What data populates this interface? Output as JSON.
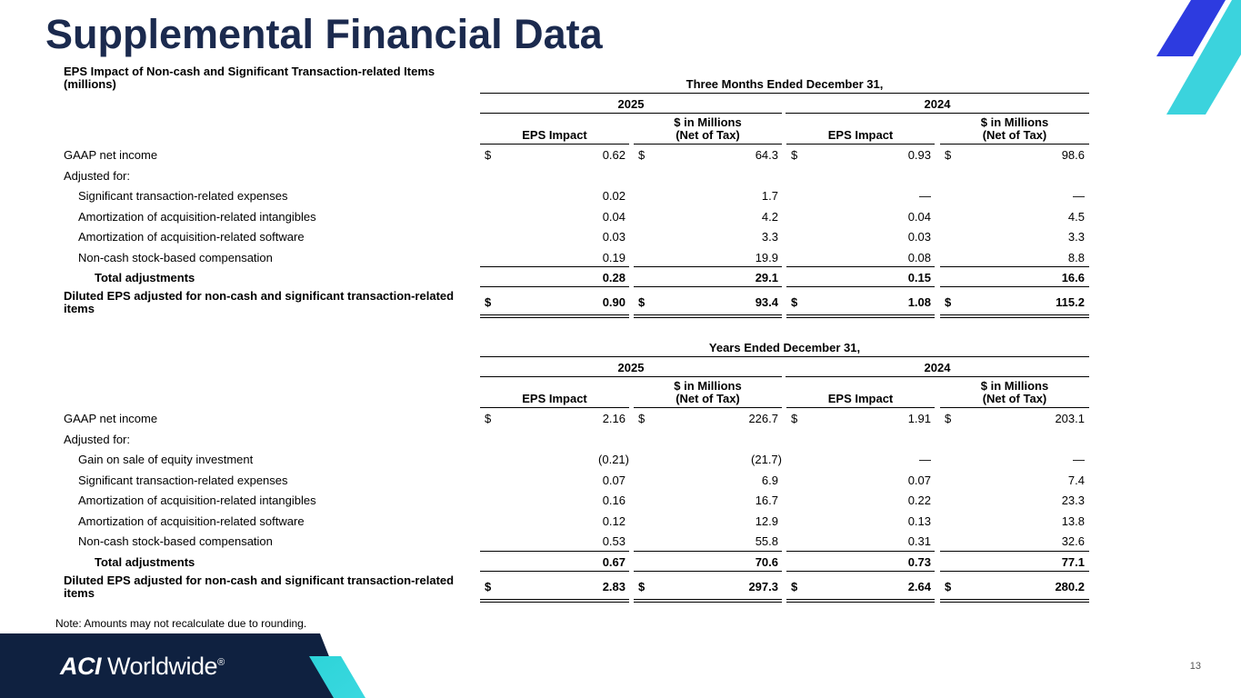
{
  "title": "Supplemental Financial Data",
  "table_title": "EPS Impact of Non-cash and Significant Transaction-related Items",
  "units": "(millions)",
  "sections": [
    {
      "period": "Three Months Ended December 31,",
      "years": [
        "2025",
        "2024"
      ],
      "headers": [
        [
          "EPS Impact"
        ],
        [
          "$ in Millions",
          "(Net of Tax)"
        ],
        [
          "EPS Impact"
        ],
        [
          "$ in Millions",
          "(Net of Tax)"
        ]
      ],
      "gaap": {
        "label": "GAAP net income",
        "currency": "$",
        "values": [
          "0.62",
          "64.3",
          "0.93",
          "98.6"
        ]
      },
      "adjusted_for": "Adjusted for:",
      "adjustments": [
        {
          "label": "Significant transaction-related expenses",
          "values": [
            "0.02",
            "1.7",
            "—",
            "—"
          ]
        },
        {
          "label": "Amortization of acquisition-related intangibles",
          "values": [
            "0.04",
            "4.2",
            "0.04",
            "4.5"
          ]
        },
        {
          "label": "Amortization of acquisition-related software",
          "values": [
            "0.03",
            "3.3",
            "0.03",
            "3.3"
          ]
        },
        {
          "label": "Non-cash stock-based compensation",
          "values": [
            "0.19",
            "19.9",
            "0.08",
            "8.8"
          ]
        }
      ],
      "total": {
        "label": "Total adjustments",
        "values": [
          "0.28",
          "29.1",
          "0.15",
          "16.6"
        ]
      },
      "diluted": {
        "label": "Diluted EPS adjusted for non-cash and significant transaction-related items",
        "currency": "$",
        "values": [
          "0.90",
          "93.4",
          "1.08",
          "115.2"
        ]
      }
    },
    {
      "period": "Years Ended December 31,",
      "years": [
        "2025",
        "2024"
      ],
      "headers": [
        [
          "EPS Impact"
        ],
        [
          "$ in Millions",
          "(Net of Tax)"
        ],
        [
          "EPS Impact"
        ],
        [
          "$ in Millions",
          "(Net of Tax)"
        ]
      ],
      "gaap": {
        "label": "GAAP net income",
        "currency": "$",
        "values": [
          "2.16",
          "226.7",
          "1.91",
          "203.1"
        ]
      },
      "adjusted_for": "Adjusted for:",
      "adjustments": [
        {
          "label": "Gain on sale of equity investment",
          "values": [
            "(0.21)",
            "(21.7)",
            "—",
            "—"
          ]
        },
        {
          "label": "Significant transaction-related expenses",
          "values": [
            "0.07",
            "6.9",
            "0.07",
            "7.4"
          ]
        },
        {
          "label": "Amortization of acquisition-related intangibles",
          "values": [
            "0.16",
            "16.7",
            "0.22",
            "23.3"
          ]
        },
        {
          "label": "Amortization of acquisition-related software",
          "values": [
            "0.12",
            "12.9",
            "0.13",
            "13.8"
          ]
        },
        {
          "label": "Non-cash stock-based compensation",
          "values": [
            "0.53",
            "55.8",
            "0.31",
            "32.6"
          ]
        }
      ],
      "total": {
        "label": "Total adjustments",
        "values": [
          "0.67",
          "70.6",
          "0.73",
          "77.1"
        ]
      },
      "diluted": {
        "label": "Diluted EPS adjusted for non-cash and significant transaction-related items",
        "currency": "$",
        "values": [
          "2.83",
          "297.3",
          "2.64",
          "280.2"
        ]
      }
    }
  ],
  "note": "Note: Amounts may not recalculate due to rounding.",
  "logo": {
    "mark": "ACI",
    "name": "Worldwide",
    "registered": "®"
  },
  "page_number": "13"
}
